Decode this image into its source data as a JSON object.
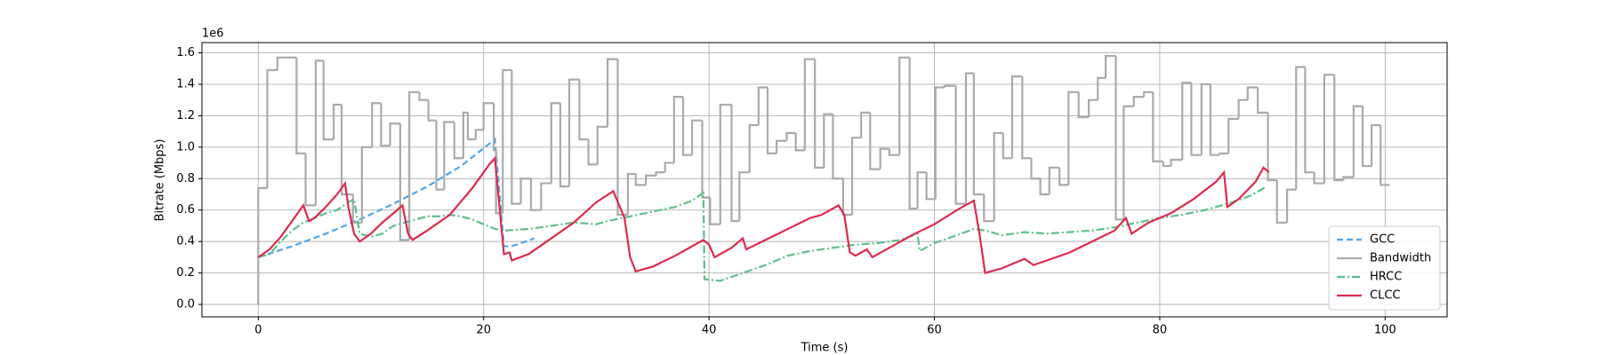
{
  "chart_data": {
    "type": "line",
    "x_label": "Time (s)",
    "y_label": "Bitrate (Mbps)",
    "y_offset_label": "1e6",
    "xlim": [
      -5,
      105.5
    ],
    "ylim": [
      -0.079,
      1.665
    ],
    "xticks": [
      0,
      20,
      40,
      60,
      80,
      100
    ],
    "yticks": [
      {
        "value": 0,
        "label": "0.0"
      },
      {
        "value": 0.2,
        "label": "0.2"
      },
      {
        "value": 0.4,
        "label": "0.4"
      },
      {
        "value": 0.6,
        "label": "0.6"
      },
      {
        "value": 0.8,
        "label": "0.8"
      },
      {
        "value": 1.0,
        "label": "1.0"
      },
      {
        "value": 1.2,
        "label": "1.2"
      },
      {
        "value": 1.4,
        "label": "1.4"
      },
      {
        "value": 1.6,
        "label": "1.6"
      }
    ],
    "grid": true,
    "legend": "lower right",
    "series": [
      {
        "name": "GCC",
        "color": "#4ea6ea",
        "style": "dashed",
        "x": [
          0,
          3,
          6,
          9,
          12,
          15,
          18,
          21,
          21.8,
          22.5,
          24.5
        ],
        "values": [
          0.3,
          0.37,
          0.45,
          0.54,
          0.64,
          0.75,
          0.88,
          1.05,
          0.37,
          0.37,
          0.42
        ]
      },
      {
        "name": "Bandwidth",
        "color": "#aaaaaa",
        "style": "solid",
        "drawstyle": "steps-post",
        "x": [
          0,
          0,
          0.8,
          1.7,
          3.4,
          4.2,
          5.1,
          5.8,
          6.7,
          7.4,
          8.4,
          9.2,
          10.1,
          10.9,
          11.7,
          12.6,
          13.4,
          14.3,
          15.1,
          15.8,
          16.5,
          17.4,
          18.2,
          18.6,
          19.3,
          20,
          20.9,
          21.1,
          21.7,
          22.5,
          23.3,
          24.2,
          25.1,
          26,
          26.8,
          27.6,
          28.5,
          29.3,
          30.1,
          31,
          31.9,
          32.8,
          33.5,
          34.4,
          35.3,
          36.1,
          36.9,
          37.7,
          38.5,
          39.4,
          40.1,
          41,
          42,
          42.7,
          43.6,
          44.4,
          45.2,
          46,
          46.9,
          47.7,
          48.5,
          49.4,
          50.2,
          51,
          51.9,
          52.7,
          53.5,
          54.3,
          55.2,
          56,
          56.9,
          57.8,
          58.5,
          59.3,
          60.1,
          60.9,
          61.9,
          62.8,
          63.5,
          64.4,
          65.3,
          66.1,
          66.9,
          67.8,
          68.6,
          69.4,
          70.2,
          71.1,
          71.9,
          72.8,
          73.7,
          74.5,
          75.2,
          76.1,
          76.8,
          77.7,
          78.6,
          79.4,
          80.3,
          81,
          82,
          82.8,
          83.7,
          84.5,
          85.3,
          86.1,
          87,
          87.8,
          88.7,
          89.6,
          90.4,
          91.3,
          92.1,
          92.9,
          93.7,
          94.6,
          95.5,
          96.3,
          97.2,
          98,
          98.8,
          99.6,
          100.4
        ],
        "values": [
          0,
          0.74,
          1.49,
          1.57,
          0.96,
          0.63,
          1.55,
          1.05,
          1.27,
          0.7,
          0.52,
          1.0,
          1.28,
          1.01,
          1.15,
          0.41,
          1.35,
          1.3,
          1.17,
          0.73,
          1.16,
          0.93,
          1.22,
          1.05,
          1.11,
          1.28,
          0.98,
          0.58,
          1.49,
          0.64,
          0.8,
          0.6,
          0.77,
          1.28,
          0.75,
          1.43,
          1.05,
          0.89,
          1.13,
          1.56,
          0.57,
          0.83,
          0.76,
          0.82,
          0.84,
          0.9,
          1.32,
          0.95,
          1.17,
          0.68,
          0.51,
          1.27,
          0.53,
          0.84,
          1.14,
          1.38,
          0.96,
          1.04,
          1.09,
          0.98,
          1.56,
          0.87,
          1.21,
          0.8,
          0.57,
          1.06,
          1.22,
          0.86,
          0.99,
          0.95,
          1.57,
          0.61,
          0.84,
          0.67,
          1.38,
          1.39,
          0.64,
          1.47,
          0.7,
          0.53,
          1.09,
          0.93,
          1.45,
          0.93,
          0.8,
          0.7,
          0.87,
          0.76,
          1.35,
          1.19,
          1.3,
          1.44,
          1.58,
          0.54,
          1.26,
          1.32,
          1.35,
          0.91,
          0.88,
          0.92,
          1.41,
          0.95,
          1.4,
          0.95,
          0.96,
          1.18,
          1.3,
          1.38,
          1.22,
          0.79,
          0.52,
          0.73,
          1.51,
          0.84,
          0.77,
          1.46,
          0.79,
          0.81,
          1.26,
          0.88,
          1.14,
          0.76,
          0.76
        ]
      },
      {
        "name": "HRCC",
        "color": "#5dbf8a",
        "style": "dashdot",
        "x": [
          0,
          1,
          2,
          3,
          4,
          5,
          6,
          7,
          8,
          8.5,
          9,
          10,
          11,
          12,
          13,
          14,
          15,
          16,
          17,
          18,
          19,
          20,
          21,
          22,
          24,
          26,
          28,
          30,
          31,
          33,
          35,
          37,
          38.5,
          39.5,
          39.6,
          41,
          43,
          45,
          47,
          49,
          51,
          53,
          55,
          57,
          58.5,
          58.7,
          60,
          62,
          63.5,
          64.5,
          66,
          68,
          70,
          72,
          74,
          76,
          78,
          80,
          82,
          84,
          86,
          88,
          89.5
        ],
        "values": [
          0.3,
          0.32,
          0.4,
          0.47,
          0.52,
          0.55,
          0.58,
          0.6,
          0.65,
          0.67,
          0.45,
          0.43,
          0.45,
          0.5,
          0.52,
          0.54,
          0.56,
          0.56,
          0.57,
          0.56,
          0.54,
          0.51,
          0.48,
          0.47,
          0.48,
          0.5,
          0.52,
          0.51,
          0.53,
          0.56,
          0.59,
          0.62,
          0.66,
          0.71,
          0.16,
          0.15,
          0.2,
          0.25,
          0.31,
          0.34,
          0.36,
          0.38,
          0.39,
          0.41,
          0.45,
          0.34,
          0.39,
          0.44,
          0.48,
          0.47,
          0.44,
          0.46,
          0.45,
          0.46,
          0.47,
          0.49,
          0.52,
          0.55,
          0.57,
          0.6,
          0.64,
          0.69,
          0.75
        ]
      },
      {
        "name": "CLCC",
        "color": "#dc2b4d",
        "style": "solid",
        "x": [
          0,
          1,
          2,
          3,
          4,
          4.5,
          5,
          6,
          7,
          7.7,
          8,
          8.5,
          9,
          10,
          11,
          12,
          12.8,
          13.3,
          13.7,
          15,
          17,
          19,
          20.5,
          21,
          21.5,
          21.8,
          22.3,
          22.5,
          24,
          26,
          28,
          30,
          31.5,
          32.5,
          33,
          33.5,
          35,
          37,
          39.5,
          40,
          40.5,
          42,
          43,
          43.3,
          45,
          47,
          49,
          50,
          51.5,
          52,
          52.5,
          53,
          54,
          54.5,
          56,
          58,
          60,
          62,
          63.5,
          64,
          64.5,
          66,
          68,
          68.8,
          70,
          72,
          74,
          76,
          77,
          77.5,
          79,
          81,
          83,
          85,
          85.7,
          86,
          87,
          88.5,
          89.2,
          89.7
        ],
        "values": [
          0.3,
          0.35,
          0.43,
          0.53,
          0.63,
          0.53,
          0.55,
          0.62,
          0.7,
          0.77,
          0.62,
          0.45,
          0.4,
          0.45,
          0.52,
          0.58,
          0.63,
          0.45,
          0.41,
          0.47,
          0.57,
          0.74,
          0.89,
          0.93,
          0.55,
          0.32,
          0.33,
          0.28,
          0.32,
          0.42,
          0.52,
          0.65,
          0.72,
          0.55,
          0.3,
          0.21,
          0.24,
          0.31,
          0.41,
          0.38,
          0.3,
          0.36,
          0.42,
          0.35,
          0.41,
          0.48,
          0.55,
          0.57,
          0.63,
          0.57,
          0.33,
          0.31,
          0.35,
          0.3,
          0.36,
          0.44,
          0.51,
          0.6,
          0.66,
          0.45,
          0.2,
          0.23,
          0.29,
          0.25,
          0.28,
          0.33,
          0.4,
          0.47,
          0.55,
          0.45,
          0.52,
          0.58,
          0.67,
          0.78,
          0.84,
          0.62,
          0.67,
          0.78,
          0.87,
          0.84
        ]
      }
    ]
  }
}
